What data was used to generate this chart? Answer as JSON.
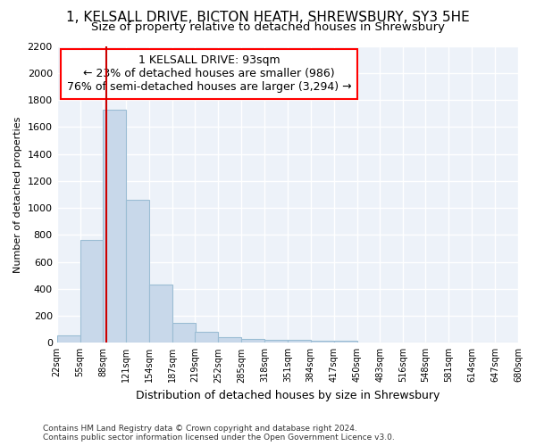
{
  "title1": "1, KELSALL DRIVE, BICTON HEATH, SHREWSBURY, SY3 5HE",
  "title2": "Size of property relative to detached houses in Shrewsbury",
  "xlabel": "Distribution of detached houses by size in Shrewsbury",
  "ylabel": "Number of detached properties",
  "footnote": "Contains HM Land Registry data © Crown copyright and database right 2024.\nContains public sector information licensed under the Open Government Licence v3.0.",
  "annotation_title": "1 KELSALL DRIVE: 93sqm",
  "annotation_line1": "← 23% of detached houses are smaller (986)",
  "annotation_line2": "76% of semi-detached houses are larger (3,294) →",
  "property_size": 93,
  "bar_color": "#c8d8ea",
  "bar_edge_color": "#9bbdd4",
  "vline_color": "#cc0000",
  "bin_edges": [
    22,
    55,
    88,
    121,
    154,
    187,
    219,
    252,
    285,
    318,
    351,
    384,
    417,
    450,
    483,
    516,
    548,
    581,
    614,
    647,
    680
  ],
  "bar_heights": [
    55,
    760,
    1730,
    1060,
    430,
    150,
    80,
    40,
    30,
    20,
    20,
    15,
    15,
    4,
    2,
    1,
    1,
    1,
    1,
    1
  ],
  "ylim": [
    0,
    2200
  ],
  "yticks": [
    0,
    200,
    400,
    600,
    800,
    1000,
    1200,
    1400,
    1600,
    1800,
    2000,
    2200
  ],
  "bg_color": "#edf2f9",
  "grid_color": "#ffffff",
  "title1_fontsize": 11,
  "title2_fontsize": 9.5,
  "annotation_fontsize": 9,
  "xlabel_fontsize": 9,
  "ylabel_fontsize": 8,
  "xtick_fontsize": 7,
  "ytick_fontsize": 8,
  "footnote_fontsize": 6.5
}
